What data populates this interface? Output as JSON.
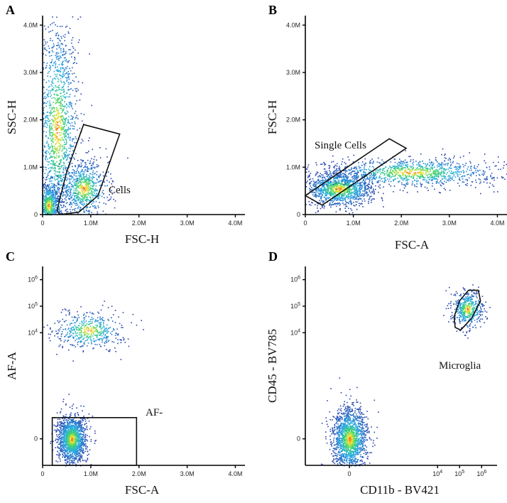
{
  "figure": {
    "panels": [
      "A",
      "B",
      "C",
      "D"
    ]
  },
  "chart_data": [
    {
      "panel": "A",
      "type": "scatter",
      "subtype": "flow-cytometry density dot plot",
      "xlabel": "FSC-H",
      "ylabel": "SSC-H",
      "xlim": [
        0,
        4.2
      ],
      "ylim": [
        0,
        4.2
      ],
      "units": "millions",
      "x_ticks": [
        {
          "v": 0,
          "label": "0"
        },
        {
          "v": 1,
          "label": "1.0M"
        },
        {
          "v": 2,
          "label": "2.0M"
        },
        {
          "v": 3,
          "label": "3.0M"
        },
        {
          "v": 4,
          "label": "4.0M"
        }
      ],
      "y_ticks": [
        {
          "v": 0,
          "label": "0"
        },
        {
          "v": 1,
          "label": "1.0M"
        },
        {
          "v": 2,
          "label": "2.0M"
        },
        {
          "v": 3,
          "label": "3.0M"
        },
        {
          "v": 4,
          "label": "4.0M"
        }
      ],
      "populations": [
        {
          "name": "debris column",
          "cx": 0.3,
          "cy": 1.8,
          "sx": 0.22,
          "sy": 1.2,
          "n": 1500
        },
        {
          "name": "low corner",
          "cx": 0.12,
          "cy": 0.2,
          "sx": 0.12,
          "sy": 0.25,
          "n": 700
        },
        {
          "name": "cells",
          "cx": 0.85,
          "cy": 0.55,
          "sx": 0.25,
          "sy": 0.3,
          "n": 700
        }
      ],
      "gate": {
        "label": "Cells",
        "points": [
          [
            0.35,
            0.0
          ],
          [
            0.75,
            0.05
          ],
          [
            1.15,
            0.4
          ],
          [
            1.6,
            1.7
          ],
          [
            0.85,
            1.9
          ],
          [
            0.5,
            0.9
          ],
          [
            0.3,
            0.1
          ]
        ]
      }
    },
    {
      "panel": "B",
      "type": "scatter",
      "subtype": "flow-cytometry density dot plot",
      "xlabel": "FSC-A",
      "ylabel": "FSC-H",
      "xlim": [
        0,
        4.2
      ],
      "ylim": [
        0,
        4.2
      ],
      "units": "millions",
      "x_ticks": [
        {
          "v": 0,
          "label": "0"
        },
        {
          "v": 1,
          "label": "1.0M"
        },
        {
          "v": 2,
          "label": "2.0M"
        },
        {
          "v": 3,
          "label": "3.0M"
        },
        {
          "v": 4,
          "label": "4.0M"
        }
      ],
      "y_ticks": [
        {
          "v": 0,
          "label": "0"
        },
        {
          "v": 1,
          "label": "1.0M"
        },
        {
          "v": 2,
          "label": "2.0M"
        },
        {
          "v": 3,
          "label": "3.0M"
        },
        {
          "v": 4,
          "label": "4.0M"
        }
      ],
      "populations": [
        {
          "name": "singlets",
          "cx": 0.7,
          "cy": 0.55,
          "sx": 0.35,
          "sy": 0.18,
          "n": 1300
        },
        {
          "name": "doublets",
          "cx": 2.2,
          "cy": 0.9,
          "sx": 0.9,
          "sy": 0.15,
          "n": 1100
        }
      ],
      "gate": {
        "label": "Single Cells",
        "points": [
          [
            0.0,
            0.4
          ],
          [
            1.75,
            1.6
          ],
          [
            2.1,
            1.4
          ],
          [
            0.35,
            0.2
          ]
        ]
      }
    },
    {
      "panel": "C",
      "type": "scatter",
      "subtype": "flow-cytometry density dot plot",
      "xlabel": "FSC-A",
      "ylabel": "AF-A",
      "xlim": [
        0,
        4.2
      ],
      "ylim": [
        -1,
        6.5
      ],
      "y_scale": "biexponential (0, 10^4, 10^5, 10^6)",
      "x_ticks": [
        {
          "v": 0,
          "label": "0"
        },
        {
          "v": 1,
          "label": "1.0M"
        },
        {
          "v": 2,
          "label": "2.0M"
        },
        {
          "v": 3,
          "label": "3.0M"
        },
        {
          "v": 4,
          "label": "4.0M"
        }
      ],
      "y_ticks": [
        {
          "v": 0,
          "label": "0"
        },
        {
          "v": 4,
          "label": "10^4"
        },
        {
          "v": 5,
          "label": "10^5"
        },
        {
          "v": 6,
          "label": "10^6"
        }
      ],
      "populations": [
        {
          "name": "AF- cells",
          "cx": 0.6,
          "cy": 0.0,
          "sx": 0.15,
          "sy": 0.45,
          "n": 1500
        },
        {
          "name": "AF+ cells",
          "cx": 0.95,
          "cy": 4.1,
          "sx": 0.35,
          "sy": 0.35,
          "n": 500
        }
      ],
      "gate": {
        "label": "AF-",
        "points": [
          [
            0.2,
            -1.0
          ],
          [
            1.95,
            -1.0
          ],
          [
            1.95,
            0.8
          ],
          [
            0.2,
            0.8
          ]
        ]
      }
    },
    {
      "panel": "D",
      "type": "scatter",
      "subtype": "flow-cytometry density dot plot",
      "xlabel": "CD11b - BV421",
      "ylabel": "CD45 - BV785",
      "xlim": [
        -2,
        6.7
      ],
      "ylim": [
        -1,
        6.5
      ],
      "x_scale": "biexponential (0, 10^4, 10^5, 10^6)",
      "y_scale": "biexponential (0, 10^4, 10^5, 10^6)",
      "x_ticks": [
        {
          "v": 0,
          "label": "0"
        },
        {
          "v": 4,
          "label": "10^4"
        },
        {
          "v": 5,
          "label": "10^5"
        },
        {
          "v": 6,
          "label": "10^6"
        }
      ],
      "y_ticks": [
        {
          "v": 0,
          "label": "0"
        },
        {
          "v": 4,
          "label": "10^4"
        },
        {
          "v": 5,
          "label": "10^5"
        },
        {
          "v": 6,
          "label": "10^6"
        }
      ],
      "populations": [
        {
          "name": "CD11b- cells",
          "cx": 0.0,
          "cy": 0.0,
          "sx": 0.4,
          "sy": 0.6,
          "n": 1600
        },
        {
          "name": "microglia",
          "cx": 5.35,
          "cy": 4.9,
          "sx": 0.35,
          "sy": 0.35,
          "n": 500
        }
      ],
      "gate": {
        "label": "Microglia",
        "points": [
          [
            4.8,
            4.2
          ],
          [
            4.75,
            4.6
          ],
          [
            5.0,
            5.2
          ],
          [
            5.4,
            5.6
          ],
          [
            5.85,
            5.6
          ],
          [
            5.95,
            5.2
          ],
          [
            5.55,
            4.55
          ],
          [
            5.05,
            4.1
          ]
        ]
      }
    }
  ]
}
